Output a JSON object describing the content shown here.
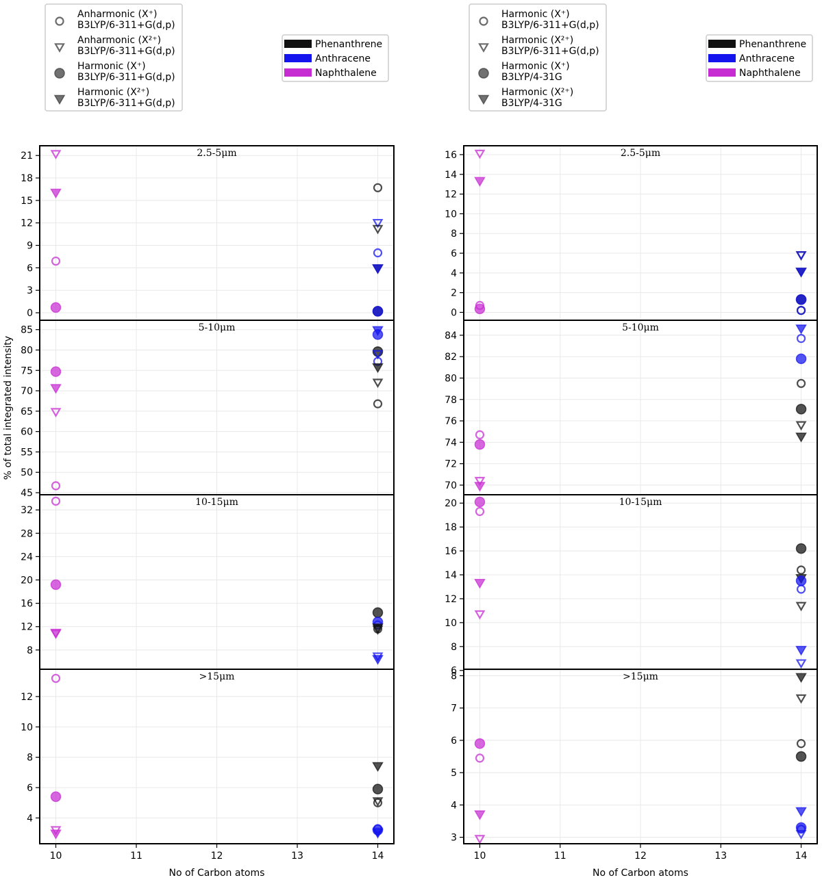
{
  "colors": {
    "Phenanthrene": "#111111",
    "Anthracene": "#1414ee",
    "Naphthalene": "#c72cd3",
    "frame": "#000000",
    "grid": "#e8e8e8"
  },
  "y_axis_label": "% of total integrated intensity",
  "chart_data": [
    {
      "type": "scatter",
      "panel": "left",
      "xlabel": "No of Carbon atoms",
      "x_ticks": [
        10,
        11,
        12,
        13,
        14
      ],
      "xlim": [
        9.8,
        14.2
      ],
      "marker_legend": [
        {
          "marker": "circle-open",
          "line1": "Anharmonic (X⁺)",
          "line2": "B3LYP/6-311+G(d,p)"
        },
        {
          "marker": "triangle-open",
          "line1": "Anharmonic (X²⁺)",
          "line2": "B3LYP/6-311+G(d,p)"
        },
        {
          "marker": "circle-filled",
          "line1": "Harmonic (X⁺)",
          "line2": "B3LYP/6-311+G(d,p)"
        },
        {
          "marker": "triangle-filled",
          "line1": "Harmonic (X²⁺)",
          "line2": "B3LYP/6-311+G(d,p)"
        }
      ],
      "color_legend": [
        "Phenanthrene",
        "Anthracene",
        "Naphthalene"
      ],
      "subplots": [
        {
          "title": "2.5-5μm",
          "ylim": [
            -1,
            22.3
          ],
          "yticks": [
            0,
            3,
            6,
            9,
            12,
            15,
            18,
            21
          ],
          "points": [
            {
              "x": 10,
              "y": 21.2,
              "m": "triangle-open",
              "c": "Naphthalene"
            },
            {
              "x": 10,
              "y": 16.0,
              "m": "triangle-filled",
              "c": "Naphthalene"
            },
            {
              "x": 10,
              "y": 6.9,
              "m": "circle-open",
              "c": "Naphthalene"
            },
            {
              "x": 10,
              "y": 0.7,
              "m": "circle-filled",
              "c": "Naphthalene"
            },
            {
              "x": 14,
              "y": 16.7,
              "m": "circle-open",
              "c": "Phenanthrene"
            },
            {
              "x": 14,
              "y": 12.0,
              "m": "triangle-open",
              "c": "Anthracene"
            },
            {
              "x": 14,
              "y": 11.2,
              "m": "triangle-open",
              "c": "Phenanthrene"
            },
            {
              "x": 14,
              "y": 8.0,
              "m": "circle-open",
              "c": "Anthracene"
            },
            {
              "x": 14,
              "y": 5.9,
              "m": "triangle-filled",
              "c": "Phenanthrene"
            },
            {
              "x": 14,
              "y": 5.9,
              "m": "triangle-filled",
              "c": "Anthracene"
            },
            {
              "x": 14,
              "y": 0.2,
              "m": "circle-filled",
              "c": "Phenanthrene"
            },
            {
              "x": 14,
              "y": 0.2,
              "m": "circle-filled",
              "c": "Anthracene"
            }
          ]
        },
        {
          "title": "5-10μm",
          "ylim": [
            44.5,
            87.3
          ],
          "yticks": [
            45,
            50,
            55,
            60,
            65,
            70,
            75,
            80,
            85
          ],
          "points": [
            {
              "x": 10,
              "y": 74.7,
              "m": "circle-filled",
              "c": "Naphthalene"
            },
            {
              "x": 10,
              "y": 70.6,
              "m": "triangle-filled",
              "c": "Naphthalene"
            },
            {
              "x": 10,
              "y": 64.8,
              "m": "triangle-open",
              "c": "Naphthalene"
            },
            {
              "x": 10,
              "y": 46.7,
              "m": "circle-open",
              "c": "Naphthalene"
            },
            {
              "x": 14,
              "y": 84.8,
              "m": "triangle-filled",
              "c": "Anthracene"
            },
            {
              "x": 14,
              "y": 83.8,
              "m": "circle-filled",
              "c": "Anthracene"
            },
            {
              "x": 14,
              "y": 79.6,
              "m": "circle-filled",
              "c": "Phenanthrene"
            },
            {
              "x": 14,
              "y": 77.2,
              "m": "circle-open",
              "c": "Anthracene"
            },
            {
              "x": 14,
              "y": 79.0,
              "m": "triangle-open",
              "c": "Anthracene"
            },
            {
              "x": 14,
              "y": 75.7,
              "m": "triangle-filled",
              "c": "Phenanthrene"
            },
            {
              "x": 14,
              "y": 72.0,
              "m": "triangle-open",
              "c": "Phenanthrene"
            },
            {
              "x": 14,
              "y": 66.8,
              "m": "circle-open",
              "c": "Phenanthrene"
            }
          ]
        },
        {
          "title": "10-15μm",
          "ylim": [
            4.7,
            34.6
          ],
          "yticks": [
            8,
            12,
            16,
            20,
            24,
            28,
            32
          ],
          "points": [
            {
              "x": 10,
              "y": 33.5,
              "m": "circle-open",
              "c": "Naphthalene"
            },
            {
              "x": 10,
              "y": 19.2,
              "m": "circle-filled",
              "c": "Naphthalene"
            },
            {
              "x": 10,
              "y": 10.9,
              "m": "triangle-filled",
              "c": "Naphthalene"
            },
            {
              "x": 10,
              "y": 10.8,
              "m": "triangle-open",
              "c": "Naphthalene"
            },
            {
              "x": 14,
              "y": 14.4,
              "m": "circle-filled",
              "c": "Phenanthrene"
            },
            {
              "x": 14,
              "y": 12.8,
              "m": "circle-filled",
              "c": "Anthracene"
            },
            {
              "x": 14,
              "y": 12.3,
              "m": "circle-open",
              "c": "Anthracene"
            },
            {
              "x": 14,
              "y": 11.8,
              "m": "triangle-filled",
              "c": "Phenanthrene"
            },
            {
              "x": 14,
              "y": 11.6,
              "m": "circle-open",
              "c": "Phenanthrene"
            },
            {
              "x": 14,
              "y": 11.5,
              "m": "triangle-open",
              "c": "Phenanthrene"
            },
            {
              "x": 14,
              "y": 6.9,
              "m": "triangle-open",
              "c": "Anthracene"
            },
            {
              "x": 14,
              "y": 6.4,
              "m": "triangle-filled",
              "c": "Anthracene"
            }
          ]
        },
        {
          "title": ">15μm",
          "ylim": [
            2.3,
            13.8
          ],
          "yticks": [
            4,
            6,
            8,
            10,
            12
          ],
          "points": [
            {
              "x": 10,
              "y": 13.2,
              "m": "circle-open",
              "c": "Naphthalene"
            },
            {
              "x": 10,
              "y": 5.4,
              "m": "circle-filled",
              "c": "Naphthalene"
            },
            {
              "x": 10,
              "y": 3.2,
              "m": "triangle-open",
              "c": "Naphthalene"
            },
            {
              "x": 10,
              "y": 2.95,
              "m": "triangle-filled",
              "c": "Naphthalene"
            },
            {
              "x": 14,
              "y": 7.4,
              "m": "triangle-filled",
              "c": "Phenanthrene"
            },
            {
              "x": 14,
              "y": 5.9,
              "m": "circle-filled",
              "c": "Phenanthrene"
            },
            {
              "x": 14,
              "y": 5.1,
              "m": "triangle-open",
              "c": "Phenanthrene"
            },
            {
              "x": 14,
              "y": 5.0,
              "m": "circle-open",
              "c": "Phenanthrene"
            },
            {
              "x": 14,
              "y": 3.3,
              "m": "circle-open",
              "c": "Anthracene"
            },
            {
              "x": 14,
              "y": 3.2,
              "m": "circle-filled",
              "c": "Anthracene"
            },
            {
              "x": 14,
              "y": 3.1,
              "m": "triangle-open",
              "c": "Anthracene"
            },
            {
              "x": 14,
              "y": 3.0,
              "m": "triangle-filled",
              "c": "Anthracene"
            }
          ]
        }
      ]
    },
    {
      "type": "scatter",
      "panel": "right",
      "xlabel": "No of Carbon atoms",
      "x_ticks": [
        10,
        11,
        12,
        13,
        14
      ],
      "xlim": [
        9.8,
        14.2
      ],
      "marker_legend": [
        {
          "marker": "circle-open",
          "line1": "Harmonic (X⁺)",
          "line2": "B3LYP/6-311+G(d,p)"
        },
        {
          "marker": "triangle-open",
          "line1": "Harmonic (X²⁺)",
          "line2": "B3LYP/6-311+G(d,p)"
        },
        {
          "marker": "circle-filled",
          "line1": "Harmonic (X⁺)",
          "line2": "B3LYP/4-31G"
        },
        {
          "marker": "triangle-filled",
          "line1": "Harmonic (X²⁺)",
          "line2": "B3LYP/4-31G"
        }
      ],
      "color_legend": [
        "Phenanthrene",
        "Anthracene",
        "Naphthalene"
      ],
      "subplots": [
        {
          "title": "2.5-5μm",
          "ylim": [
            -0.8,
            16.9
          ],
          "yticks": [
            0,
            2,
            4,
            6,
            8,
            10,
            12,
            14,
            16
          ],
          "points": [
            {
              "x": 10,
              "y": 16.1,
              "m": "triangle-open",
              "c": "Naphthalene"
            },
            {
              "x": 10,
              "y": 13.3,
              "m": "triangle-filled",
              "c": "Naphthalene"
            },
            {
              "x": 10,
              "y": 0.7,
              "m": "circle-open",
              "c": "Naphthalene"
            },
            {
              "x": 10,
              "y": 0.35,
              "m": "circle-filled",
              "c": "Naphthalene"
            },
            {
              "x": 14,
              "y": 5.8,
              "m": "triangle-open",
              "c": "Phenanthrene"
            },
            {
              "x": 14,
              "y": 5.8,
              "m": "triangle-open",
              "c": "Anthracene"
            },
            {
              "x": 14,
              "y": 4.1,
              "m": "triangle-filled",
              "c": "Phenanthrene"
            },
            {
              "x": 14,
              "y": 4.1,
              "m": "triangle-filled",
              "c": "Anthracene"
            },
            {
              "x": 14,
              "y": 1.3,
              "m": "circle-filled",
              "c": "Phenanthrene"
            },
            {
              "x": 14,
              "y": 1.3,
              "m": "circle-filled",
              "c": "Anthracene"
            },
            {
              "x": 14,
              "y": 0.2,
              "m": "circle-open",
              "c": "Phenanthrene"
            },
            {
              "x": 14,
              "y": 0.2,
              "m": "circle-open",
              "c": "Anthracene"
            }
          ]
        },
        {
          "title": "5-10μm",
          "ylim": [
            69.1,
            85.4
          ],
          "yticks": [
            70,
            72,
            74,
            76,
            78,
            80,
            82,
            84
          ],
          "points": [
            {
              "x": 10,
              "y": 74.7,
              "m": "circle-open",
              "c": "Naphthalene"
            },
            {
              "x": 10,
              "y": 73.8,
              "m": "circle-filled",
              "c": "Naphthalene"
            },
            {
              "x": 10,
              "y": 70.4,
              "m": "triangle-open",
              "c": "Naphthalene"
            },
            {
              "x": 10,
              "y": 69.9,
              "m": "triangle-filled",
              "c": "Naphthalene"
            },
            {
              "x": 14,
              "y": 84.6,
              "m": "triangle-filled",
              "c": "Anthracene"
            },
            {
              "x": 14,
              "y": 83.7,
              "m": "circle-open",
              "c": "Anthracene"
            },
            {
              "x": 14,
              "y": 81.8,
              "m": "circle-filled",
              "c": "Anthracene"
            },
            {
              "x": 14,
              "y": 79.5,
              "m": "circle-open",
              "c": "Phenanthrene"
            },
            {
              "x": 14,
              "y": 77.1,
              "m": "circle-filled",
              "c": "Phenanthrene"
            },
            {
              "x": 14,
              "y": 75.6,
              "m": "triangle-open",
              "c": "Phenanthrene"
            },
            {
              "x": 14,
              "y": 74.5,
              "m": "triangle-filled",
              "c": "Phenanthrene"
            }
          ]
        },
        {
          "title": "10-15μm",
          "ylim": [
            6.1,
            20.7
          ],
          "yticks": [
            6,
            8,
            10,
            12,
            14,
            16,
            18,
            20
          ],
          "points": [
            {
              "x": 10,
              "y": 20.1,
              "m": "circle-filled",
              "c": "Naphthalene"
            },
            {
              "x": 10,
              "y": 19.3,
              "m": "circle-open",
              "c": "Naphthalene"
            },
            {
              "x": 10,
              "y": 13.3,
              "m": "triangle-filled",
              "c": "Naphthalene"
            },
            {
              "x": 10,
              "y": 10.7,
              "m": "triangle-open",
              "c": "Naphthalene"
            },
            {
              "x": 14,
              "y": 16.2,
              "m": "circle-filled",
              "c": "Phenanthrene"
            },
            {
              "x": 14,
              "y": 14.4,
              "m": "circle-open",
              "c": "Phenanthrene"
            },
            {
              "x": 14,
              "y": 13.7,
              "m": "triangle-filled",
              "c": "Phenanthrene"
            },
            {
              "x": 14,
              "y": 13.5,
              "m": "circle-filled",
              "c": "Anthracene"
            },
            {
              "x": 14,
              "y": 12.8,
              "m": "circle-open",
              "c": "Anthracene"
            },
            {
              "x": 14,
              "y": 11.4,
              "m": "triangle-open",
              "c": "Phenanthrene"
            },
            {
              "x": 14,
              "y": 7.7,
              "m": "triangle-filled",
              "c": "Anthracene"
            },
            {
              "x": 14,
              "y": 6.6,
              "m": "triangle-open",
              "c": "Anthracene"
            }
          ]
        },
        {
          "title": ">15μm",
          "ylim": [
            2.8,
            8.2
          ],
          "yticks": [
            3,
            4,
            5,
            6,
            7,
            8
          ],
          "points": [
            {
              "x": 10,
              "y": 5.9,
              "m": "circle-filled",
              "c": "Naphthalene"
            },
            {
              "x": 10,
              "y": 5.45,
              "m": "circle-open",
              "c": "Naphthalene"
            },
            {
              "x": 10,
              "y": 3.7,
              "m": "triangle-filled",
              "c": "Naphthalene"
            },
            {
              "x": 10,
              "y": 2.95,
              "m": "triangle-open",
              "c": "Naphthalene"
            },
            {
              "x": 14,
              "y": 7.95,
              "m": "triangle-filled",
              "c": "Phenanthrene"
            },
            {
              "x": 14,
              "y": 7.3,
              "m": "triangle-open",
              "c": "Phenanthrene"
            },
            {
              "x": 14,
              "y": 5.9,
              "m": "circle-open",
              "c": "Phenanthrene"
            },
            {
              "x": 14,
              "y": 5.5,
              "m": "circle-filled",
              "c": "Phenanthrene"
            },
            {
              "x": 14,
              "y": 3.8,
              "m": "triangle-filled",
              "c": "Anthracene"
            },
            {
              "x": 14,
              "y": 3.3,
              "m": "circle-filled",
              "c": "Anthracene"
            },
            {
              "x": 14,
              "y": 3.25,
              "m": "circle-open",
              "c": "Anthracene"
            },
            {
              "x": 14,
              "y": 3.1,
              "m": "triangle-open",
              "c": "Anthracene"
            }
          ]
        }
      ]
    }
  ]
}
